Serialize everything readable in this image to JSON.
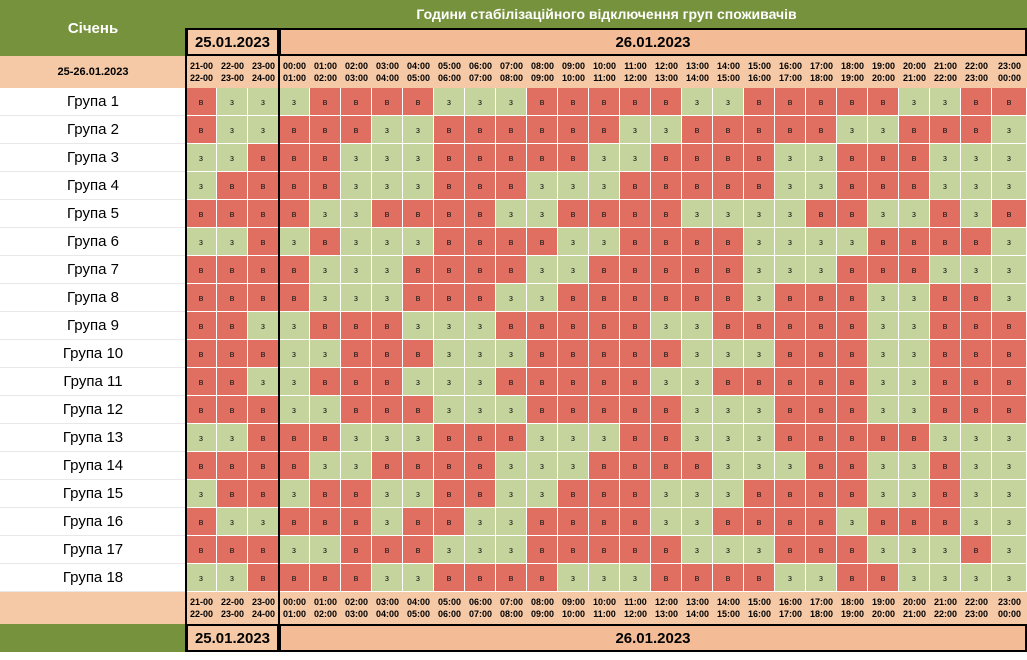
{
  "title": "Години стабілізаційного відключення груп споживачів",
  "month": "Січень",
  "date_range": "25-26.01.2023",
  "date1": "25.01.2023",
  "date2": "26.01.2023",
  "hours": [
    [
      "21-00",
      "22-00"
    ],
    [
      "22-00",
      "23-00"
    ],
    [
      "23-00",
      "24-00"
    ],
    [
      "00:00",
      "01:00"
    ],
    [
      "01:00",
      "02:00"
    ],
    [
      "02:00",
      "03:00"
    ],
    [
      "03:00",
      "04:00"
    ],
    [
      "04:00",
      "05:00"
    ],
    [
      "05:00",
      "06:00"
    ],
    [
      "06:00",
      "07:00"
    ],
    [
      "07:00",
      "08:00"
    ],
    [
      "08:00",
      "09:00"
    ],
    [
      "09:00",
      "10:00"
    ],
    [
      "10:00",
      "11:00"
    ],
    [
      "11:00",
      "12:00"
    ],
    [
      "12:00",
      "13:00"
    ],
    [
      "13:00",
      "14:00"
    ],
    [
      "14:00",
      "15:00"
    ],
    [
      "15:00",
      "16:00"
    ],
    [
      "16:00",
      "17:00"
    ],
    [
      "17:00",
      "18:00"
    ],
    [
      "18:00",
      "19:00"
    ],
    [
      "19:00",
      "20:00"
    ],
    [
      "20:00",
      "21:00"
    ],
    [
      "21:00",
      "22:00"
    ],
    [
      "22:00",
      "23:00"
    ],
    [
      "23:00",
      "00:00"
    ]
  ],
  "groups": [
    {
      "name": "Група 1",
      "states": "ВЗЗЗВВВВЗЗЗВВВВВЗЗВВВВВЗЗВВ"
    },
    {
      "name": "Група 2",
      "states": "ВЗЗВВВЗЗВВВВВВЗЗВВВВВЗЗВВВЗ"
    },
    {
      "name": "Група 3",
      "states": "ЗЗВВВЗЗЗВВВВВЗЗВВВВЗЗВВВЗЗЗ"
    },
    {
      "name": "Група 4",
      "states": "ЗВВВВЗЗЗВВВЗЗЗВВВВВЗЗВВВЗЗЗ"
    },
    {
      "name": "Група 5",
      "states": "ВВВВЗЗВВВВЗЗВВВВЗЗЗЗВВЗЗВЗВ"
    },
    {
      "name": "Група 6",
      "states": "ЗЗВЗВЗЗЗВВВВЗЗВВВВЗЗЗЗВВВВЗ"
    },
    {
      "name": "Група 7",
      "states": "ВВВВЗЗЗВВВВЗЗВВВВВЗЗЗВВВЗЗЗ"
    },
    {
      "name": "Група 8",
      "states": "ВВВВЗЗЗВВВЗЗВВВВВВЗВВВЗЗВВЗ"
    },
    {
      "name": "Група 9",
      "states": "ВВЗЗВВВЗЗЗВВВВВЗЗВВВВВЗЗВВВ"
    },
    {
      "name": "Група 10",
      "states": "ВВВЗЗВВВЗЗЗВВВВВЗЗЗВВВЗЗВВВ"
    },
    {
      "name": "Група 11",
      "states": "ВВЗЗВВВЗЗЗВВВВВЗЗВВВВВЗЗВВВ"
    },
    {
      "name": "Група 12",
      "states": "ВВВЗЗВВВЗЗЗВВВВВЗЗЗВВВЗЗВВВ"
    },
    {
      "name": "Група 13",
      "states": "ЗЗВВВЗЗЗВВВЗЗЗВВЗЗЗВВВВВЗЗЗ"
    },
    {
      "name": "Група 14",
      "states": "ВВВВЗЗВВВВЗЗЗВВВВЗЗЗВВЗЗВЗЗ"
    },
    {
      "name": "Група 15",
      "states": "ЗВВЗВВЗЗВВЗЗВВВЗЗЗВВВВЗЗВЗЗ"
    },
    {
      "name": "Група 16",
      "states": "ВЗЗВВВЗВВЗЗВВВВЗЗВВВВЗВВВЗЗ"
    },
    {
      "name": "Група 17",
      "states": "ВВВЗЗВВВЗЗЗВВВВВЗЗЗВВВЗЗЗВЗ"
    },
    {
      "name": "Група 18",
      "states": "ЗЗВВВВЗЗВВВВЗЗЗВВВВЗЗВВЗЗЗЗ"
    }
  ],
  "state_letters": {
    "off": "в",
    "on": "з"
  },
  "colors": {
    "header": "#77923c",
    "peach": "#f5c9a6",
    "off": "#e06f62",
    "on": "#c5d49d"
  }
}
